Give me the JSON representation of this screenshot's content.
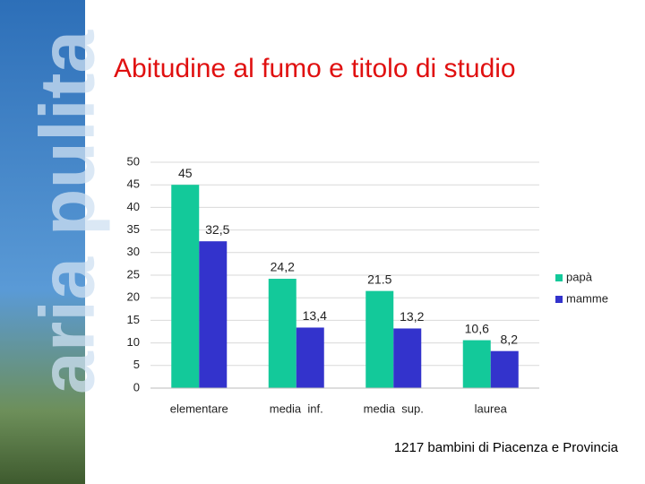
{
  "sidebar": {
    "text": "aria pulita"
  },
  "chart_data": {
    "type": "bar",
    "title": "Abitudine al fumo e titolo di studio",
    "categories": [
      "elementare",
      "media  inf.",
      "media  sup.",
      "laurea"
    ],
    "series": [
      {
        "name": "papà",
        "color": "#13c99a",
        "values": [
          45,
          24.2,
          21.5,
          10.6
        ],
        "value_labels": [
          "45",
          "24,2",
          "21.5",
          "10,6"
        ]
      },
      {
        "name": "mamme",
        "color": "#3333cc",
        "values": [
          32.5,
          13.4,
          13.2,
          8.2
        ],
        "value_labels": [
          "32,5",
          "13,4",
          "13,2",
          "8,2"
        ]
      }
    ],
    "ylim": [
      0,
      50
    ],
    "yticks": [
      0,
      5,
      10,
      15,
      20,
      25,
      30,
      35,
      40,
      45,
      50
    ],
    "grid": true,
    "legend": "right",
    "annotations": [
      "1217 bambini di Piacenza e Provincia"
    ]
  }
}
